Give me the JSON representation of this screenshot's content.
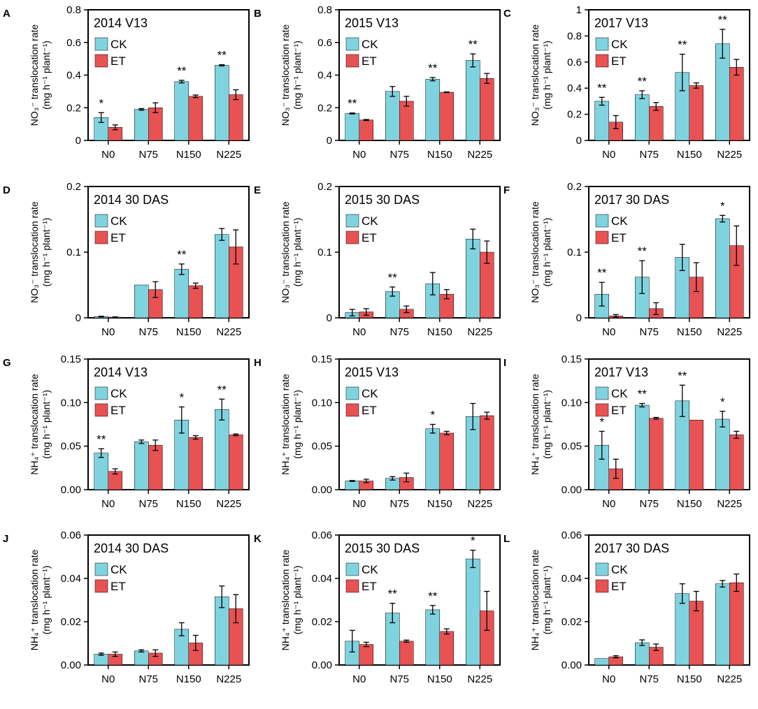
{
  "figure": {
    "colors": {
      "ck": "#7fd3df",
      "et": "#e85252",
      "axis": "#000000"
    },
    "legend": {
      "ck": "CK",
      "et": "ET"
    }
  },
  "chart_data": [
    {
      "id": "A",
      "type": "bar",
      "panel_label": "A",
      "title": "2014 V13",
      "ylabel_species": "NO3-",
      "ylabel_line1": "NO₃⁻ translocation rate",
      "ylabel_line2": "(mg h⁻¹ plant⁻¹)",
      "categories": [
        "N0",
        "N75",
        "N150",
        "N225"
      ],
      "ylim": [
        0,
        0.8
      ],
      "yticks": [
        "0",
        "0.2",
        "0.4",
        "0.6",
        "0.8"
      ],
      "series": [
        {
          "name": "CK",
          "values": [
            0.14,
            0.19,
            0.36,
            0.46
          ],
          "errors": [
            0.03,
            0.005,
            0.008,
            0.004
          ]
        },
        {
          "name": "ET",
          "values": [
            0.08,
            0.2,
            0.27,
            0.28
          ],
          "errors": [
            0.015,
            0.03,
            0.008,
            0.03
          ]
        }
      ],
      "significance": [
        "*",
        "",
        "**",
        "**"
      ]
    },
    {
      "id": "B",
      "type": "bar",
      "panel_label": "B",
      "title": "2015 V13",
      "ylabel_line1": "NO₃⁻ translocation rate",
      "ylabel_line2": "(mg h⁻¹ plant⁻¹)",
      "categories": [
        "N0",
        "N75",
        "N150",
        "N225"
      ],
      "ylim": [
        0,
        0.8
      ],
      "yticks": [
        "0",
        "0.2",
        "0.4",
        "0.6",
        "0.8"
      ],
      "series": [
        {
          "name": "CK",
          "values": [
            0.165,
            0.3,
            0.375,
            0.49
          ],
          "errors": [
            0.003,
            0.03,
            0.01,
            0.04
          ]
        },
        {
          "name": "ET",
          "values": [
            0.125,
            0.24,
            0.295,
            0.38
          ],
          "errors": [
            0.003,
            0.03,
            0.002,
            0.03
          ]
        }
      ],
      "significance": [
        "**",
        "",
        "**",
        "**"
      ]
    },
    {
      "id": "C",
      "type": "bar",
      "panel_label": "C",
      "title": "2017 V13",
      "ylabel_line1": "NO₃⁻ translocation rate",
      "ylabel_line2": "(mg h⁻¹ plant⁻¹)",
      "categories": [
        "N0",
        "N75",
        "N150",
        "N225"
      ],
      "ylim": [
        0,
        1
      ],
      "yticks": [
        "0",
        "0.2",
        "0.4",
        "0.6",
        "0.8",
        "1"
      ],
      "series": [
        {
          "name": "CK",
          "values": [
            0.3,
            0.35,
            0.52,
            0.74
          ],
          "errors": [
            0.03,
            0.03,
            0.14,
            0.11
          ]
        },
        {
          "name": "ET",
          "values": [
            0.14,
            0.26,
            0.42,
            0.56
          ],
          "errors": [
            0.05,
            0.03,
            0.02,
            0.06
          ]
        }
      ],
      "significance": [
        "**",
        "**",
        "**",
        "**"
      ]
    },
    {
      "id": "D",
      "type": "bar",
      "panel_label": "D",
      "title": "2014 30 DAS",
      "ylabel_line1": "NO₃⁻ translocation rate",
      "ylabel_line2": "(mg h⁻¹ plant⁻¹)",
      "categories": [
        "N0",
        "N75",
        "N150",
        "N225"
      ],
      "ylim": [
        0,
        0.2
      ],
      "yticks": [
        "0",
        "0.1",
        "0.2"
      ],
      "series": [
        {
          "name": "CK",
          "values": [
            0.002,
            0.05,
            0.074,
            0.127
          ],
          "errors": [
            0.0005,
            0,
            0.008,
            0.009
          ]
        },
        {
          "name": "ET",
          "values": [
            0.001,
            0.043,
            0.049,
            0.108
          ],
          "errors": [
            0.0005,
            0.012,
            0.004,
            0.026
          ]
        }
      ],
      "significance": [
        "",
        "",
        "**",
        ""
      ]
    },
    {
      "id": "E",
      "type": "bar",
      "panel_label": "E",
      "title": "2015 30 DAS",
      "ylabel_line1": "NO₃⁻ translocation rate",
      "ylabel_line2": "(mg h⁻¹ plant⁻¹)",
      "categories": [
        "N0",
        "N75",
        "N150",
        "N225"
      ],
      "ylim": [
        0,
        0.2
      ],
      "yticks": [
        "0",
        "0.1",
        "0.2"
      ],
      "series": [
        {
          "name": "CK",
          "values": [
            0.008,
            0.04,
            0.052,
            0.12
          ],
          "errors": [
            0.005,
            0.007,
            0.017,
            0.015
          ]
        },
        {
          "name": "ET",
          "values": [
            0.009,
            0.013,
            0.036,
            0.1
          ],
          "errors": [
            0.005,
            0.005,
            0.007,
            0.017
          ]
        }
      ],
      "significance": [
        "",
        "**",
        "",
        ""
      ]
    },
    {
      "id": "F",
      "type": "bar",
      "panel_label": "F",
      "title": "2017 30 DAS",
      "ylabel_line1": "NO₃⁻ translocation rate",
      "ylabel_line2": "(mg h⁻¹ plant⁻¹)",
      "categories": [
        "N0",
        "N75",
        "N150",
        "N225"
      ],
      "ylim": [
        0,
        0.2
      ],
      "yticks": [
        "0",
        "0.1",
        "0.2"
      ],
      "series": [
        {
          "name": "CK",
          "values": [
            0.036,
            0.062,
            0.092,
            0.151
          ],
          "errors": [
            0.018,
            0.025,
            0.02,
            0.005
          ]
        },
        {
          "name": "ET",
          "values": [
            0.003,
            0.014,
            0.062,
            0.11
          ],
          "errors": [
            0.002,
            0.009,
            0.022,
            0.03
          ]
        }
      ],
      "significance": [
        "**",
        "**",
        "",
        "*"
      ]
    },
    {
      "id": "G",
      "type": "bar",
      "panel_label": "G",
      "title": "2014 V13",
      "ylabel_line1": "NH₄⁺ translocation rate",
      "ylabel_line2": "(mg h⁻¹ plant⁻¹)",
      "categories": [
        "N0",
        "N75",
        "N150",
        "N225"
      ],
      "ylim": [
        0,
        0.15
      ],
      "yticks": [
        "0.00",
        "0.05",
        "0.10",
        "0.15"
      ],
      "series": [
        {
          "name": "CK",
          "values": [
            0.042,
            0.055,
            0.08,
            0.092
          ],
          "errors": [
            0.005,
            0.002,
            0.015,
            0.012
          ]
        },
        {
          "name": "ET",
          "values": [
            0.021,
            0.051,
            0.06,
            0.063
          ],
          "errors": [
            0.003,
            0.006,
            0.002,
            0.001
          ]
        }
      ],
      "significance": [
        "**",
        "",
        "*",
        "**"
      ]
    },
    {
      "id": "H",
      "type": "bar",
      "panel_label": "H",
      "title": "2015 V13",
      "ylabel_line1": "NH₄⁺ translocation rate",
      "ylabel_line2": "(mg h⁻¹ plant⁻¹)",
      "categories": [
        "N0",
        "N75",
        "N150",
        "N225"
      ],
      "ylim": [
        0,
        0.15
      ],
      "yticks": [
        "0.00",
        "0.05",
        "0.10",
        "0.15"
      ],
      "series": [
        {
          "name": "CK",
          "values": [
            0.01,
            0.013,
            0.07,
            0.084
          ],
          "errors": [
            0.0005,
            0.002,
            0.005,
            0.015
          ]
        },
        {
          "name": "ET",
          "values": [
            0.01,
            0.014,
            0.065,
            0.085
          ],
          "errors": [
            0.002,
            0.005,
            0.002,
            0.004
          ]
        }
      ],
      "significance": [
        "",
        "",
        "*",
        ""
      ]
    },
    {
      "id": "I",
      "type": "bar",
      "panel_label": "I",
      "title": "2017 V13",
      "ylabel_line1": "NH₄⁺ translocation rate",
      "ylabel_line2": "(mg h⁻¹ plant⁻¹)",
      "categories": [
        "N0",
        "N75",
        "N150",
        "N225"
      ],
      "ylim": [
        0,
        0.15
      ],
      "yticks": [
        "0.00",
        "0.05",
        "0.10",
        "0.15"
      ],
      "series": [
        {
          "name": "CK",
          "values": [
            0.051,
            0.097,
            0.102,
            0.081
          ],
          "errors": [
            0.016,
            0.002,
            0.018,
            0.009
          ]
        },
        {
          "name": "ET",
          "values": [
            0.024,
            0.082,
            0.08,
            0.063
          ],
          "errors": [
            0.011,
            0.001,
            0,
            0.004
          ]
        }
      ],
      "significance": [
        "*",
        "**",
        "**",
        "*"
      ]
    },
    {
      "id": "J",
      "type": "bar",
      "panel_label": "J",
      "title": "2014 30 DAS",
      "ylabel_line1": "NH₄⁺ translocation rate",
      "ylabel_line2": "(mg h⁻¹ plant⁻¹)",
      "categories": [
        "N0",
        "N75",
        "N150",
        "N225"
      ],
      "ylim": [
        0,
        0.06
      ],
      "yticks": [
        "0.00",
        "0.02",
        "0.04",
        "0.06"
      ],
      "series": [
        {
          "name": "CK",
          "values": [
            0.005,
            0.0065,
            0.0165,
            0.0315
          ],
          "errors": [
            0.0005,
            0.0005,
            0.003,
            0.005
          ]
        },
        {
          "name": "ET",
          "values": [
            0.005,
            0.0055,
            0.0102,
            0.026
          ],
          "errors": [
            0.001,
            0.0015,
            0.0035,
            0.0065
          ]
        }
      ],
      "significance": [
        "",
        "",
        "",
        ""
      ]
    },
    {
      "id": "K",
      "type": "bar",
      "panel_label": "K",
      "title": "2015 30 DAS",
      "ylabel_line1": "NH₄⁺ translocation rate",
      "ylabel_line2": "(mg h⁻¹ plant⁻¹)",
      "categories": [
        "N0",
        "N75",
        "N150",
        "N225"
      ],
      "ylim": [
        0,
        0.06
      ],
      "yticks": [
        "0.00",
        "0.02",
        "0.04",
        "0.06"
      ],
      "series": [
        {
          "name": "CK",
          "values": [
            0.011,
            0.024,
            0.0255,
            0.049
          ],
          "errors": [
            0.005,
            0.0045,
            0.002,
            0.004
          ]
        },
        {
          "name": "ET",
          "values": [
            0.0095,
            0.011,
            0.0155,
            0.025
          ],
          "errors": [
            0.001,
            0.0005,
            0.0012,
            0.009
          ]
        }
      ],
      "significance": [
        "",
        "**",
        "**",
        "*"
      ]
    },
    {
      "id": "L",
      "type": "bar",
      "panel_label": "L",
      "title": "2017 30 DAS",
      "ylabel_line1": "NH₄⁺ translocation rate",
      "ylabel_line2": "(mg h⁻¹ plant⁻¹)",
      "categories": [
        "N0",
        "N75",
        "N150",
        "N225"
      ],
      "ylim": [
        0,
        0.06
      ],
      "yticks": [
        "0.00",
        "0.02",
        "0.04",
        "0.06"
      ],
      "series": [
        {
          "name": "CK",
          "values": [
            0.003,
            0.0103,
            0.033,
            0.0375
          ],
          "errors": [
            0,
            0.0013,
            0.0045,
            0.0015
          ]
        },
        {
          "name": "ET",
          "values": [
            0.0038,
            0.0082,
            0.0295,
            0.038
          ],
          "errors": [
            0.0005,
            0.0015,
            0.0045,
            0.004
          ]
        }
      ],
      "significance": [
        "",
        "",
        "",
        ""
      ]
    }
  ]
}
